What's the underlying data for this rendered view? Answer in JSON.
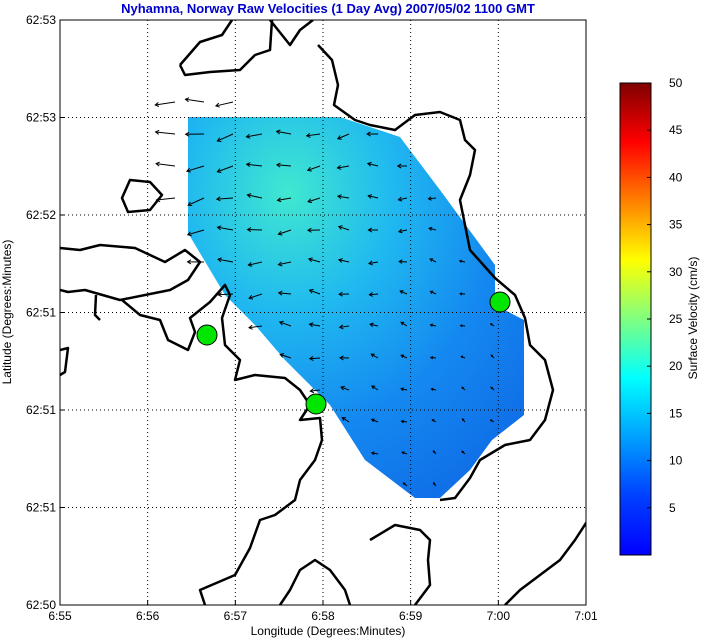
{
  "title": "Nyhamna, Norway Raw Velocities (1 Day Avg) 2007/05/02 1100 GMT",
  "chart_data": {
    "type": "heatmap",
    "title": "Nyhamna, Norway Raw Velocities (1 Day Avg) 2007/05/02 1100 GMT",
    "xlabel": "Longitude (Degrees:Minutes)",
    "ylabel": "Latitude (Degrees:Minutes)",
    "x_ticks": [
      "6:55",
      "6:56",
      "6:57",
      "6:58",
      "6:59",
      "7:00",
      "7:01"
    ],
    "y_ticks": [
      "62:53",
      "62:53",
      "62:52",
      "62:51",
      "62:51",
      "62:51",
      "62:50"
    ],
    "grid": true,
    "colorbar": {
      "label": "Surface Velocity (cm/s)",
      "ticks": [
        "50",
        "45",
        "40",
        "35",
        "30",
        "25",
        "20",
        "15",
        "10",
        "5"
      ],
      "range": [
        0,
        50
      ],
      "colormap": "jet"
    },
    "site_marker_color": "#00e600",
    "arrow_color": "#000000",
    "coastline_color": "#000000"
  }
}
